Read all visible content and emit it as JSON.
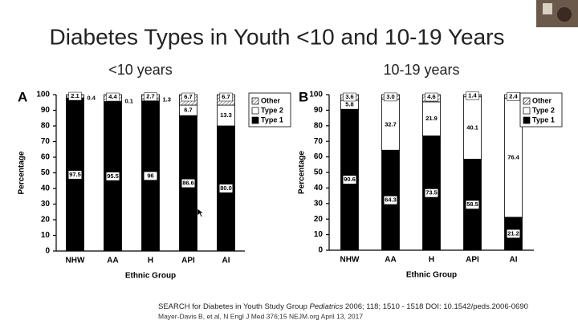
{
  "title": "Diabetes Types in Youth <10 and 10-19 Years",
  "citations": [
    [
      "SEARCH for Diabetes in Youth Study Group ",
      "Pediatrics",
      " 2006; 118; 1510 - 1518 DOI: 10.1542/peds.2006-0690"
    ],
    [
      "Mayer-Davis B, et al, N Engl J Med 376;15 NEJM.org April 13, 2017"
    ]
  ],
  "chart_data": [
    {
      "type": "stacked_bar",
      "panel": "A",
      "title": "<10 years",
      "xlabel": "Ethnic Group",
      "ylabel": "Percentage",
      "categories": [
        "NHW",
        "AA",
        "H",
        "API",
        "AI"
      ],
      "ylim": [
        0,
        100
      ],
      "yticks": [
        0,
        10,
        20,
        30,
        40,
        50,
        60,
        70,
        80,
        90,
        100
      ],
      "grid": false,
      "legend": "right",
      "series": [
        {
          "name": "Type 1",
          "color": "#000000",
          "values": [
            97.5,
            95.5,
            96,
            86.6,
            80.0
          ],
          "value_labels": [
            "97.5",
            "95.5",
            "96",
            "86.6",
            "80.0"
          ]
        },
        {
          "name": "Type 2",
          "color": "#ffffff",
          "values": [
            0.4,
            0.1,
            1.3,
            6.7,
            13.3
          ]
        },
        {
          "name": "Other",
          "color": "#ffffff",
          "pattern": "hatch",
          "values": [
            2.1,
            4.4,
            2.7,
            6.7,
            6.7
          ]
        }
      ]
    },
    {
      "type": "stacked_bar",
      "panel": "B",
      "title": "10-19 years",
      "xlabel": "Ethnic Group",
      "ylabel": "Percentage",
      "categories": [
        "NHW",
        "AA",
        "H",
        "API",
        "AI"
      ],
      "ylim": [
        0,
        100
      ],
      "yticks": [
        0,
        10,
        20,
        30,
        40,
        50,
        60,
        70,
        80,
        90,
        100
      ],
      "grid": false,
      "legend": "right",
      "series": [
        {
          "name": "Type 1",
          "color": "#000000",
          "values": [
            90.6,
            64.3,
            73.5,
            58.5,
            21.2
          ]
        },
        {
          "name": "Type 2",
          "color": "#ffffff",
          "values": [
            5.8,
            32.7,
            21.9,
            40.1,
            76.4
          ]
        },
        {
          "name": "Other",
          "color": "#ffffff",
          "pattern": "hatch",
          "values": [
            3.6,
            3.0,
            4.6,
            1.4,
            2.4
          ],
          "value_labels": [
            "3.6",
            "3.0",
            "4.6",
            "1.4",
            "2.4"
          ]
        }
      ]
    }
  ]
}
